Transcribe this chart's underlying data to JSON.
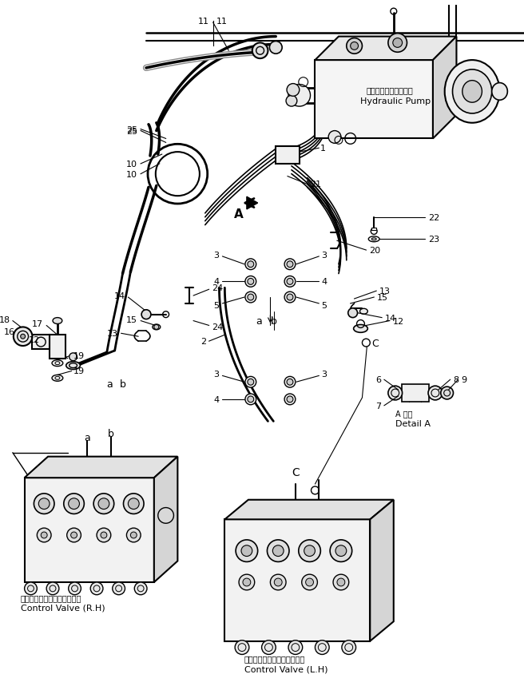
{
  "bg_color": "#ffffff",
  "line_color": "#000000",
  "figsize": [
    6.56,
    8.7
  ],
  "dpi": 100,
  "labels": {
    "hydraulic_pump_jp": "ハイドロリックポンプ",
    "hydraulic_pump_en": "Hydraulic Pump",
    "control_valve_rh_jp": "コントロールバルブ　（右）",
    "control_valve_rh_en": "Control Valve (R.H)",
    "control_valve_lh_jp": "コントロールバルブ　（左）",
    "control_valve_lh_en": "Control Valve (L.H)",
    "detail_a_jp": "A 詳細",
    "detail_a_en": "Detail A"
  }
}
